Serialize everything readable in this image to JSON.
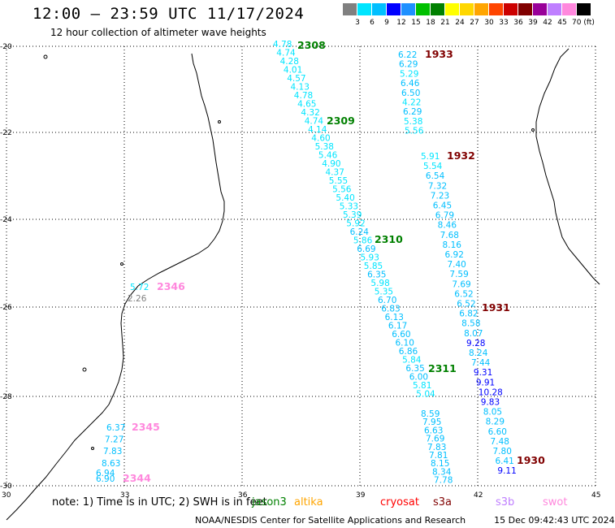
{
  "title": "12:00 – 23:59 UTC 11/17/2024",
  "subtitle": "12 hour collection of altimeter wave heights",
  "color_scale": {
    "labels": [
      "3",
      "6",
      "9",
      "12",
      "15",
      "18",
      "21",
      "24",
      "27",
      "30",
      "33",
      "36",
      "39",
      "42",
      "45",
      "70 (ft)"
    ],
    "colors": [
      "#808080",
      "#00e5ff",
      "#00bfff",
      "#0000ff",
      "#1e90ff",
      "#00c000",
      "#008000",
      "#ffff00",
      "#ffd700",
      "#ffa500",
      "#ff4500",
      "#cc0000",
      "#800000",
      "#990099",
      "#bf7fff",
      "#ff88dd",
      "#000000"
    ]
  },
  "axes": {
    "x_ticks": [
      "30",
      "33",
      "36",
      "39",
      "42",
      "45"
    ],
    "y_ticks": [
      "-20",
      "-22",
      "-24",
      "-26",
      "-28",
      "-30"
    ]
  },
  "footer": {
    "note": "note:  1) Time is in UTC;  2) SWH is in feet",
    "missions": [
      {
        "name": "jason3",
        "color": "#008000"
      },
      {
        "name": "altika",
        "color": "#ffa500"
      },
      {
        "name": "cryosat",
        "color": "#ff0000"
      },
      {
        "name": "s3a",
        "color": "#800000"
      },
      {
        "name": "s3b",
        "color": "#bf7fff"
      },
      {
        "name": "swot",
        "color": "#ff88dd"
      }
    ],
    "credit": "NOAA/NESDIS Center for Satellite Applications and Research",
    "timestamp": "15 Dec 09:42:43 UTC 2024"
  },
  "pass_labels": [
    {
      "text": "2308",
      "color": "#008000"
    },
    {
      "text": "2309",
      "color": "#008000"
    },
    {
      "text": "2310",
      "color": "#008000"
    },
    {
      "text": "2311",
      "color": "#008000"
    },
    {
      "text": "1933",
      "color": "#800000"
    },
    {
      "text": "1932",
      "color": "#800000"
    },
    {
      "text": "1931",
      "color": "#800000"
    },
    {
      "text": "1930",
      "color": "#800000"
    },
    {
      "text": "2346",
      "color": "#ff88dd"
    },
    {
      "text": "2345",
      "color": "#ff88dd"
    },
    {
      "text": "2344",
      "color": "#ff88dd"
    }
  ],
  "tracks": [
    {
      "name": "track-jason3",
      "values": [
        {
          "t": "4.78",
          "c": "#00e5ff"
        },
        {
          "t": "4.74",
          "c": "#00e5ff"
        },
        {
          "t": "4.28",
          "c": "#00e5ff"
        },
        {
          "t": "4.01",
          "c": "#00e5ff"
        },
        {
          "t": "4.57",
          "c": "#00e5ff"
        },
        {
          "t": "4.13",
          "c": "#00e5ff"
        },
        {
          "t": "4.78",
          "c": "#00e5ff"
        },
        {
          "t": "4.65",
          "c": "#00e5ff"
        },
        {
          "t": "4.32",
          "c": "#00e5ff"
        },
        {
          "t": "4.74",
          "c": "#00e5ff"
        },
        {
          "t": "4.14",
          "c": "#00e5ff"
        },
        {
          "t": "4.60",
          "c": "#00e5ff"
        },
        {
          "t": "5.38",
          "c": "#00e5ff"
        },
        {
          "t": "5.46",
          "c": "#00e5ff"
        },
        {
          "t": "4.90",
          "c": "#00e5ff"
        },
        {
          "t": "4.37",
          "c": "#00e5ff"
        },
        {
          "t": "5.55",
          "c": "#00e5ff"
        },
        {
          "t": "5.56",
          "c": "#00e5ff"
        },
        {
          "t": "5.40",
          "c": "#00e5ff"
        },
        {
          "t": "5.33",
          "c": "#00e5ff"
        },
        {
          "t": "5.39",
          "c": "#00e5ff"
        },
        {
          "t": "5.92",
          "c": "#00e5ff"
        },
        {
          "t": "6.24",
          "c": "#00bfff"
        },
        {
          "t": "5.86",
          "c": "#00e5ff"
        },
        {
          "t": "6.69",
          "c": "#00bfff"
        },
        {
          "t": "5.93",
          "c": "#00e5ff"
        },
        {
          "t": "5.85",
          "c": "#00e5ff"
        },
        {
          "t": "6.35",
          "c": "#00bfff"
        },
        {
          "t": "5.98",
          "c": "#00e5ff"
        },
        {
          "t": "5.35",
          "c": "#00e5ff"
        },
        {
          "t": "6.70",
          "c": "#00bfff"
        },
        {
          "t": "6.83",
          "c": "#00bfff"
        },
        {
          "t": "6.13",
          "c": "#00bfff"
        },
        {
          "t": "6.17",
          "c": "#00bfff"
        },
        {
          "t": "6.60",
          "c": "#00bfff"
        },
        {
          "t": "6.10",
          "c": "#00bfff"
        },
        {
          "t": "6.86",
          "c": "#00bfff"
        },
        {
          "t": "5.84",
          "c": "#00e5ff"
        },
        {
          "t": "6.35",
          "c": "#00bfff"
        },
        {
          "t": "6.00",
          "c": "#00bfff"
        },
        {
          "t": "5.81",
          "c": "#00e5ff"
        },
        {
          "t": "5.04",
          "c": "#00e5ff"
        }
      ]
    },
    {
      "name": "track-s3a-north",
      "values": [
        {
          "t": "6.22",
          "c": "#00bfff"
        },
        {
          "t": "6.29",
          "c": "#00bfff"
        },
        {
          "t": "5.29",
          "c": "#00e5ff"
        },
        {
          "t": "6.46",
          "c": "#00bfff"
        },
        {
          "t": "6.50",
          "c": "#00bfff"
        },
        {
          "t": "4.22",
          "c": "#00e5ff"
        },
        {
          "t": "6.29",
          "c": "#00bfff"
        },
        {
          "t": "5.38",
          "c": "#00e5ff"
        },
        {
          "t": "5.56",
          "c": "#00e5ff"
        }
      ]
    },
    {
      "name": "track-s3a-middle",
      "values": [
        {
          "t": "5.91",
          "c": "#00e5ff"
        },
        {
          "t": "5.54",
          "c": "#00e5ff"
        },
        {
          "t": "6.54",
          "c": "#00bfff"
        },
        {
          "t": "7.32",
          "c": "#00bfff"
        },
        {
          "t": "7.23",
          "c": "#00bfff"
        },
        {
          "t": "6.45",
          "c": "#00bfff"
        },
        {
          "t": "6.79",
          "c": "#00bfff"
        },
        {
          "t": "8.46",
          "c": "#00bfff"
        },
        {
          "t": "7.68",
          "c": "#00bfff"
        },
        {
          "t": "8.16",
          "c": "#00bfff"
        },
        {
          "t": "6.92",
          "c": "#00bfff"
        },
        {
          "t": "7.40",
          "c": "#00bfff"
        },
        {
          "t": "7.59",
          "c": "#00bfff"
        },
        {
          "t": "7.69",
          "c": "#00bfff"
        },
        {
          "t": "6.52",
          "c": "#00bfff"
        },
        {
          "t": "6.52",
          "c": "#00bfff"
        },
        {
          "t": "6.82",
          "c": "#00bfff"
        },
        {
          "t": "8.58",
          "c": "#00bfff"
        },
        {
          "t": "8.07",
          "c": "#00bfff"
        },
        {
          "t": "9.28",
          "c": "#0000ff"
        },
        {
          "t": "8.24",
          "c": "#00bfff"
        },
        {
          "t": "7.44",
          "c": "#00bfff"
        },
        {
          "t": "9.31",
          "c": "#0000ff"
        },
        {
          "t": "9.91",
          "c": "#0000ff"
        },
        {
          "t": "10.28",
          "c": "#0000ff"
        },
        {
          "t": "9.83",
          "c": "#0000ff"
        },
        {
          "t": "8.05",
          "c": "#00bfff"
        },
        {
          "t": "8.29",
          "c": "#00bfff"
        },
        {
          "t": "6.60",
          "c": "#00bfff"
        },
        {
          "t": "7.48",
          "c": "#00bfff"
        },
        {
          "t": "7.80",
          "c": "#00bfff"
        },
        {
          "t": "6.41",
          "c": "#00bfff"
        },
        {
          "t": "9.11",
          "c": "#0000ff"
        }
      ]
    },
    {
      "name": "track-s3a-south",
      "values": [
        {
          "t": "8.59",
          "c": "#00bfff"
        },
        {
          "t": "7.95",
          "c": "#00bfff"
        },
        {
          "t": "6.63",
          "c": "#00bfff"
        },
        {
          "t": "7.69",
          "c": "#00bfff"
        },
        {
          "t": "7.83",
          "c": "#00bfff"
        },
        {
          "t": "7.81",
          "c": "#00bfff"
        },
        {
          "t": "8.15",
          "c": "#00bfff"
        },
        {
          "t": "8.34",
          "c": "#00bfff"
        },
        {
          "t": "7.78",
          "c": "#00bfff"
        }
      ]
    },
    {
      "name": "track-swot-north",
      "values": [
        {
          "t": "5.72",
          "c": "#00e5ff"
        },
        {
          "t": "2.26",
          "c": "#808080"
        }
      ]
    },
    {
      "name": "track-swot-south",
      "values": [
        {
          "t": "6.37",
          "c": "#00bfff"
        },
        {
          "t": "7.27",
          "c": "#00bfff"
        },
        {
          "t": "7.83",
          "c": "#00bfff"
        },
        {
          "t": "8.63",
          "c": "#00bfff"
        },
        {
          "t": "6.94",
          "c": "#00bfff"
        },
        {
          "t": "6.90",
          "c": "#00bfff"
        }
      ]
    }
  ]
}
